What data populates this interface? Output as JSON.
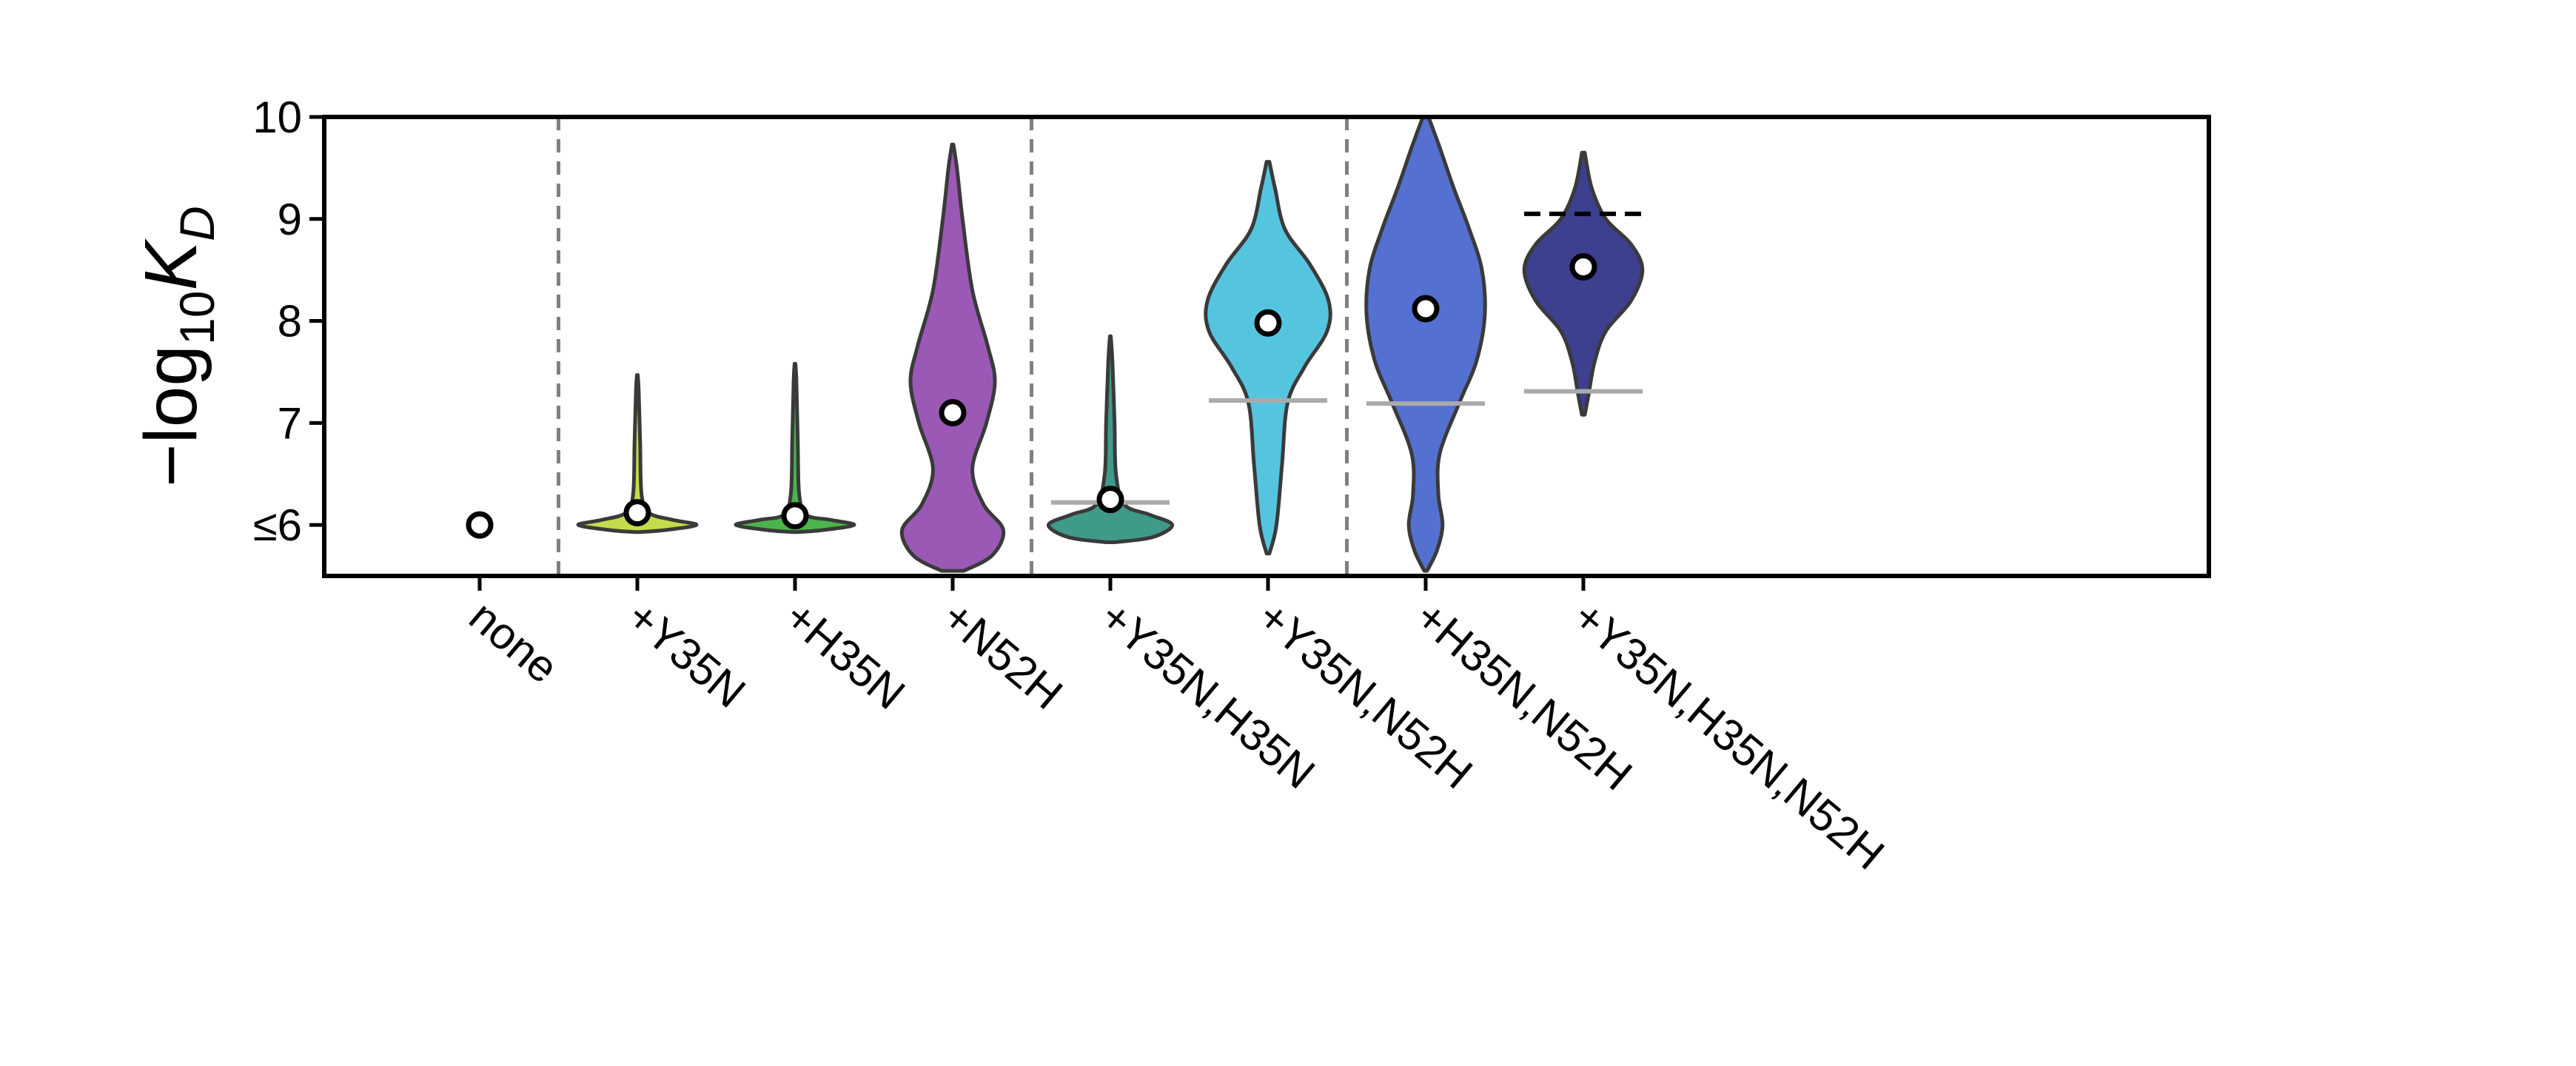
{
  "chart_data": {
    "type": "violin",
    "ylabel": {
      "prefix": "−log",
      "sub1": "10",
      "main": "K",
      "sub2": "D"
    },
    "ylim": [
      5.5,
      10
    ],
    "yticks": [
      {
        "value": 6,
        "label": "≤6"
      },
      {
        "value": 7,
        "label": "7"
      },
      {
        "value": 8,
        "label": "8"
      },
      {
        "value": 9,
        "label": "9"
      },
      {
        "value": 10,
        "label": "10"
      }
    ],
    "grid": false,
    "group_separators_after": [
      "none",
      "+N52H",
      "+Y35N,N52H"
    ],
    "categories": [
      {
        "label": "none",
        "median": 6.0,
        "color": null
      },
      {
        "label": "+Y35N",
        "median": 6.12,
        "color": "#c5dc4a",
        "profile": [
          [
            5.93,
            0.02
          ],
          [
            5.95,
            0.2
          ],
          [
            6.0,
            0.42
          ],
          [
            6.05,
            0.25
          ],
          [
            6.12,
            0.08
          ],
          [
            6.3,
            0.03
          ],
          [
            6.8,
            0.02
          ],
          [
            7.3,
            0.01
          ],
          [
            7.47,
            0.003
          ]
        ]
      },
      {
        "label": "+H35N",
        "median": 6.09,
        "color": "#4ab54a",
        "profile": [
          [
            5.93,
            0.02
          ],
          [
            5.95,
            0.2
          ],
          [
            6.0,
            0.42
          ],
          [
            6.05,
            0.25
          ],
          [
            6.1,
            0.08
          ],
          [
            6.3,
            0.03
          ],
          [
            6.8,
            0.02
          ],
          [
            7.4,
            0.01
          ],
          [
            7.58,
            0.003
          ]
        ]
      },
      {
        "label": "+N52H",
        "median": 7.1,
        "color": "#9b59b6",
        "profile": [
          [
            5.55,
            0.08
          ],
          [
            5.7,
            0.28
          ],
          [
            5.95,
            0.36
          ],
          [
            6.2,
            0.22
          ],
          [
            6.55,
            0.14
          ],
          [
            7.0,
            0.24
          ],
          [
            7.4,
            0.3
          ],
          [
            7.75,
            0.25
          ],
          [
            8.3,
            0.14
          ],
          [
            9.0,
            0.07
          ],
          [
            9.5,
            0.03
          ],
          [
            9.73,
            0.005
          ]
        ]
      },
      {
        "label": "+Y35N,H35N",
        "median": 6.25,
        "color": "#3f9a8a",
        "profile": [
          [
            5.83,
            0.03
          ],
          [
            5.88,
            0.3
          ],
          [
            6.0,
            0.44
          ],
          [
            6.1,
            0.28
          ],
          [
            6.2,
            0.1
          ],
          [
            6.5,
            0.04
          ],
          [
            7.0,
            0.03
          ],
          [
            7.6,
            0.015
          ],
          [
            7.85,
            0.003
          ]
        ]
      },
      {
        "label": "+Y35N,N52H",
        "median": 7.98,
        "color": "#55c5df",
        "profile": [
          [
            5.72,
            0.01
          ],
          [
            6.0,
            0.06
          ],
          [
            6.6,
            0.1
          ],
          [
            7.2,
            0.14
          ],
          [
            7.55,
            0.26
          ],
          [
            7.9,
            0.42
          ],
          [
            8.2,
            0.43
          ],
          [
            8.55,
            0.3
          ],
          [
            8.9,
            0.12
          ],
          [
            9.3,
            0.05
          ],
          [
            9.56,
            0.01
          ]
        ]
      },
      {
        "label": "+H35N,N52H",
        "median": 8.12,
        "color": "#5470d1",
        "profile": [
          [
            5.55,
            0.01
          ],
          [
            5.75,
            0.08
          ],
          [
            6.0,
            0.12
          ],
          [
            6.3,
            0.09
          ],
          [
            6.7,
            0.1
          ],
          [
            7.2,
            0.24
          ],
          [
            7.6,
            0.36
          ],
          [
            8.05,
            0.42
          ],
          [
            8.5,
            0.4
          ],
          [
            8.9,
            0.31
          ],
          [
            9.3,
            0.2
          ],
          [
            9.7,
            0.1
          ],
          [
            10.0,
            0.02
          ]
        ]
      },
      {
        "label": "+Y35N,H35N,N52H",
        "median": 8.53,
        "color": "#3d3f8f",
        "profile": [
          [
            7.08,
            0.01
          ],
          [
            7.3,
            0.04
          ],
          [
            7.6,
            0.08
          ],
          [
            7.9,
            0.16
          ],
          [
            8.2,
            0.34
          ],
          [
            8.5,
            0.42
          ],
          [
            8.75,
            0.34
          ],
          [
            9.0,
            0.16
          ],
          [
            9.3,
            0.06
          ],
          [
            9.65,
            0.01
          ]
        ]
      }
    ],
    "reference_lines": [
      {
        "category": "+Y35N,H35N",
        "y": 6.22,
        "style": "solid",
        "color": "#aaaaaa"
      },
      {
        "category": "+Y35N,N52H",
        "y": 7.22,
        "style": "solid",
        "color": "#aaaaaa"
      },
      {
        "category": "+H35N,N52H",
        "y": 7.19,
        "style": "solid",
        "color": "#aaaaaa"
      },
      {
        "category": "+Y35N,H35N,N52H",
        "y": 7.31,
        "style": "solid",
        "color": "#aaaaaa"
      },
      {
        "category": "+Y35N,H35N,N52H",
        "y": 9.05,
        "style": "dashed",
        "color": "#000000"
      }
    ]
  }
}
